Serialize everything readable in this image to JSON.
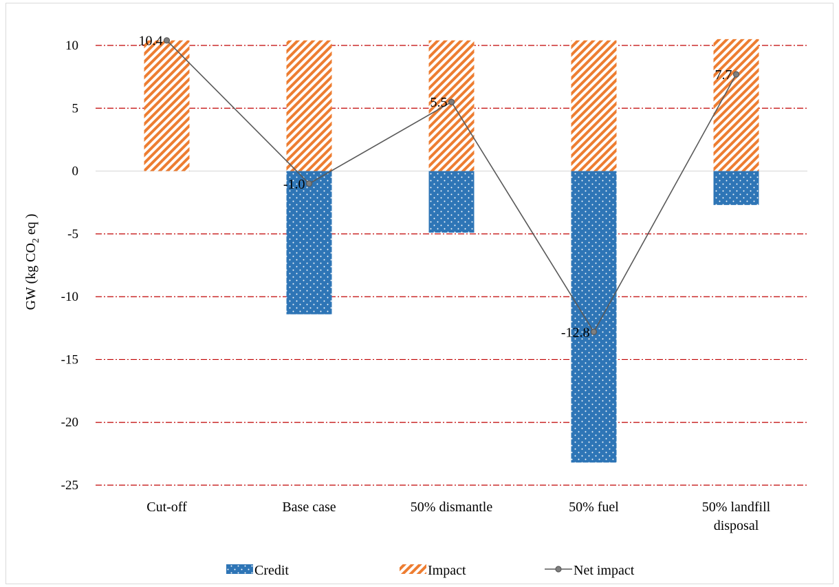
{
  "chart_data": {
    "type": "bar",
    "stacked": true,
    "categories": [
      "Cut-off",
      "Base case",
      "50% dismantle",
      "50% fuel",
      "50% landfill disposal"
    ],
    "category_lines": [
      [
        "Cut-off"
      ],
      [
        "Base case"
      ],
      [
        "50% dismantle"
      ],
      [
        "50% fuel"
      ],
      [
        "50% landfill",
        "disposal"
      ]
    ],
    "series": [
      {
        "name": "Credit",
        "kind": "bar",
        "pattern": "dots",
        "color": "#2e75b6",
        "values": [
          0,
          -11.4,
          -4.9,
          -23.2,
          -2.7
        ]
      },
      {
        "name": "Impact",
        "kind": "bar",
        "pattern": "diagonal-stripes",
        "color": "#ed7d31",
        "values": [
          10.4,
          10.4,
          10.4,
          10.4,
          10.5
        ]
      },
      {
        "name": "Net impact",
        "kind": "line",
        "color": "#595959",
        "values": [
          10.4,
          -1.0,
          5.5,
          -12.8,
          7.7
        ]
      }
    ],
    "data_labels": [
      "10.4",
      "-1.0",
      "5.5",
      "-12.8",
      "7.7"
    ],
    "ylabel": {
      "prefix": "GW  (kg CO",
      "subscript": "2",
      "suffix": " eq )"
    },
    "ylim": [
      -25,
      10
    ],
    "yticks": [
      10,
      5,
      0,
      -5,
      -10,
      -15,
      -20,
      -25
    ],
    "grid": true,
    "grid_color": "#c00000",
    "legend_position": "bottom"
  }
}
